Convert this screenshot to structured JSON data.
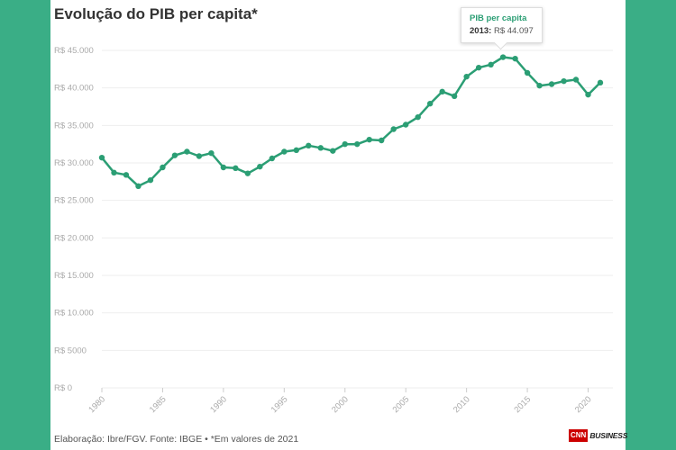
{
  "page": {
    "title": "Evolução do PIB per capita*",
    "footer": "Elaboração: Ibre/FGV. Fonte: IBGE • *Em valores de 2021",
    "logo_box": "CNN",
    "logo_text": "BUSINESS"
  },
  "tooltip": {
    "series": "PIB per capita",
    "year": "2013:",
    "value": "R$ 44.097"
  },
  "colors": {
    "line": "#2b9e74",
    "background": "#3aae86"
  },
  "chart_data": {
    "type": "line",
    "title": "Evolução do PIB per capita*",
    "xlabel": "",
    "ylabel": "",
    "xlim": [
      1980,
      2021
    ],
    "ylim": [
      0,
      45000
    ],
    "grid": true,
    "y_ticks": [
      0,
      5000,
      10000,
      15000,
      20000,
      25000,
      30000,
      35000,
      40000,
      45000
    ],
    "y_tick_labels": [
      "R$ 0",
      "R$ 5000",
      "R$ 10.000",
      "R$ 15.000",
      "R$ 20.000",
      "R$ 25.000",
      "R$ 30.000",
      "R$ 35.000",
      "R$ 40.000",
      "R$ 45.000"
    ],
    "x_ticks": [
      1980,
      1985,
      1990,
      1995,
      2000,
      2005,
      2010,
      2015,
      2020
    ],
    "x_tick_labels": [
      "1980",
      "1985",
      "1990",
      "1995",
      "2000",
      "2005",
      "2010",
      "2015",
      "2020"
    ],
    "series": [
      {
        "name": "PIB per capita",
        "x": [
          1980,
          1981,
          1982,
          1983,
          1984,
          1985,
          1986,
          1987,
          1988,
          1989,
          1990,
          1991,
          1992,
          1993,
          1994,
          1995,
          1996,
          1997,
          1998,
          1999,
          2000,
          2001,
          2002,
          2003,
          2004,
          2005,
          2006,
          2007,
          2008,
          2009,
          2010,
          2011,
          2012,
          2013,
          2014,
          2015,
          2016,
          2017,
          2018,
          2019,
          2020,
          2021
        ],
        "values": [
          30700,
          28700,
          28400,
          26900,
          27700,
          29400,
          31000,
          31500,
          30900,
          31300,
          29400,
          29300,
          28600,
          29500,
          30600,
          31500,
          31700,
          32300,
          32000,
          31600,
          32500,
          32500,
          33100,
          33000,
          34500,
          35100,
          36100,
          37900,
          39500,
          38900,
          41500,
          42700,
          43100,
          44097,
          43900,
          42000,
          40300,
          40500,
          40900,
          41100,
          39100,
          40700
        ]
      }
    ]
  }
}
